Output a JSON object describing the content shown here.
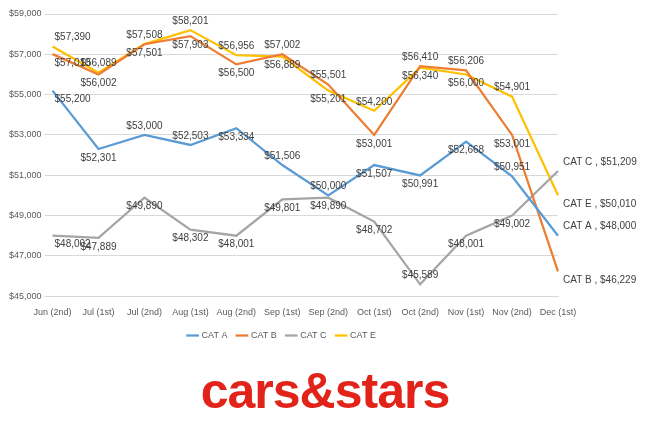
{
  "chart_data": {
    "type": "line",
    "categories": [
      "Jun (2nd)",
      "Jul (1st)",
      "Jul (2nd)",
      "Aug (1st)",
      "Aug (2nd)",
      "Sep (1st)",
      "Sep (2nd)",
      "Oct (1st)",
      "Oct (2nd)",
      "Nov (1st)",
      "Nov (2nd)",
      "Dec (1st)"
    ],
    "series": [
      {
        "name": "CAT A",
        "color": "#5b9bd5",
        "values": [
          55200,
          52301,
          53000,
          52503,
          53334,
          51506,
          50000,
          51507,
          50991,
          52668,
          50951,
          48000
        ],
        "value_labels": [
          "$55,200",
          "$52,301",
          "$53,000",
          "$52,503",
          "$53,334",
          "$51,506",
          "$50,000",
          "$51,507",
          "$50,991",
          "$52,668",
          "$50,951",
          "CAT A , $48,000"
        ]
      },
      {
        "name": "CAT B",
        "color": "#ed7d31",
        "values": [
          57010,
          56002,
          57501,
          57903,
          56500,
          57002,
          55501,
          53001,
          56410,
          56206,
          53001,
          46229
        ],
        "value_labels": [
          "$57,010",
          "$56,002",
          "$57,501",
          "$57,903",
          "$56,500",
          "$57,002",
          "$55,501",
          "$53,001",
          "$56,410",
          "$56,206",
          "$53,001",
          "CAT B , $46,229"
        ]
      },
      {
        "name": "CAT C",
        "color": "#a5a5a5",
        "values": [
          48002,
          47889,
          49890,
          48302,
          48001,
          49801,
          49890,
          48702,
          45589,
          48001,
          49002,
          51209
        ],
        "value_labels": [
          "$48,002",
          "$47,889",
          "$49,890",
          "$48,302",
          "$48,001",
          "$49,801",
          "$49,890",
          "$48,702",
          "$45,589",
          "$48,001",
          "$49,002",
          "CAT C , $51,209"
        ]
      },
      {
        "name": "CAT E",
        "color": "#ffc000",
        "values": [
          57390,
          56089,
          57508,
          58201,
          56956,
          56889,
          55201,
          54200,
          56340,
          56000,
          54901,
          50010
        ],
        "value_labels": [
          "$57,390",
          "$56,089",
          "$57,508",
          "$58,201",
          "$56,956",
          "$56,889",
          "$55,201",
          "$54,200",
          "$56,340",
          "$56,000",
          "$54,901",
          "CAT E , $50,010"
        ]
      }
    ],
    "ylim": [
      45000,
      59000
    ],
    "yticks": [
      {
        "value": 45000,
        "label": "$45,000"
      },
      {
        "value": 47000,
        "label": "$47,000"
      },
      {
        "value": 49000,
        "label": "$49,000"
      },
      {
        "value": 51000,
        "label": "$51,000"
      },
      {
        "value": 53000,
        "label": "$53,000"
      },
      {
        "value": 55000,
        "label": "$55,000"
      },
      {
        "value": 57000,
        "label": "$57,000"
      },
      {
        "value": 59000,
        "label": "$59,000"
      }
    ],
    "grid": true,
    "legend": "bottom",
    "data_labels": true,
    "marker": "none",
    "footer": "cars&stars"
  }
}
